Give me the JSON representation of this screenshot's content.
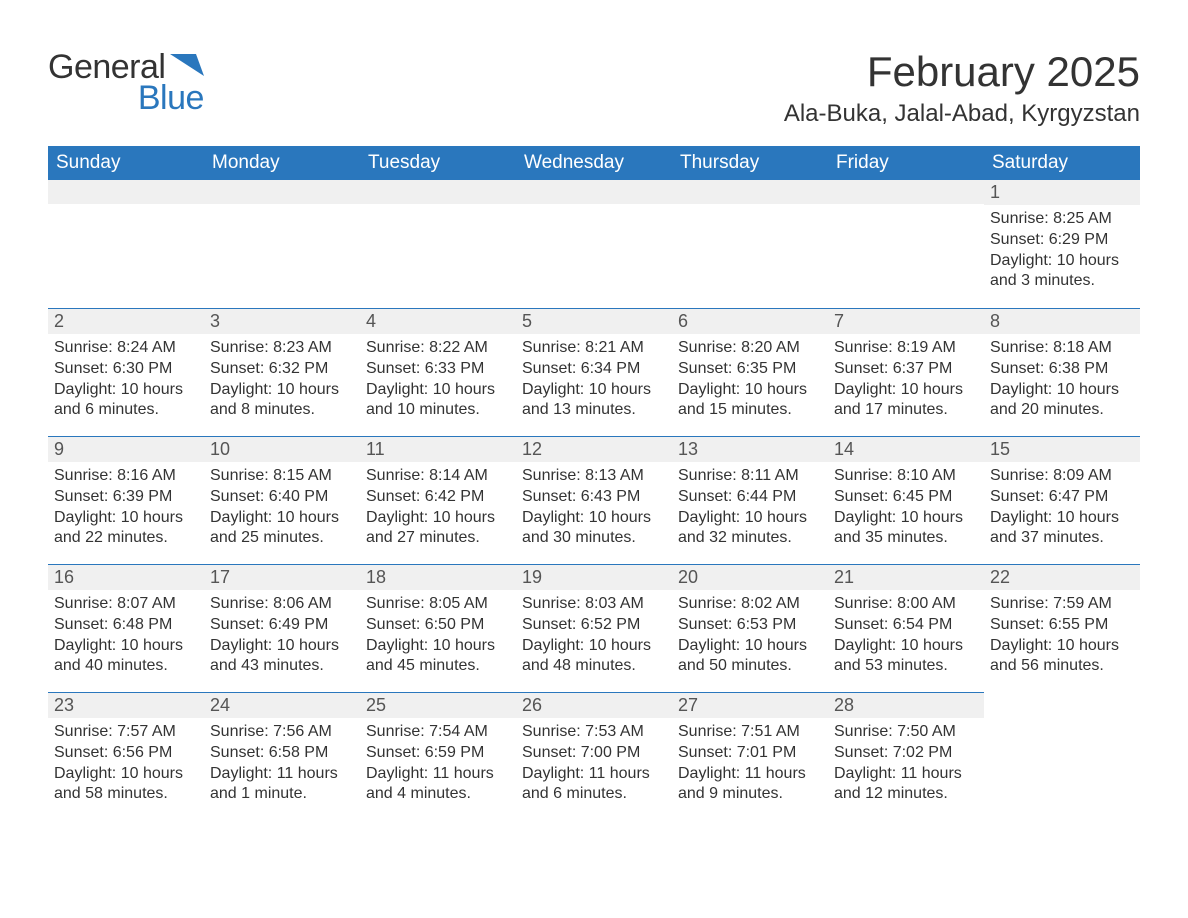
{
  "brand": {
    "word1": "General",
    "word2": "Blue"
  },
  "title": "February 2025",
  "location": "Ala-Buka, Jalal-Abad, Kyrgyzstan",
  "colors": {
    "header_bg": "#2a77bd",
    "header_text": "#ffffff",
    "daynum_bg": "#f0f0f0",
    "row_border": "#2a77bd",
    "body_text": "#333333",
    "background": "#ffffff"
  },
  "typography": {
    "title_fontsize": 42,
    "location_fontsize": 24,
    "header_fontsize": 19,
    "daynum_fontsize": 18,
    "cell_fontsize": 16
  },
  "weekdays": [
    "Sunday",
    "Monday",
    "Tuesday",
    "Wednesday",
    "Thursday",
    "Friday",
    "Saturday"
  ],
  "weeks": [
    [
      null,
      null,
      null,
      null,
      null,
      null,
      {
        "n": "1",
        "sunrise": "Sunrise: 8:25 AM",
        "sunset": "Sunset: 6:29 PM",
        "daylight": "Daylight: 10 hours and 3 minutes."
      }
    ],
    [
      {
        "n": "2",
        "sunrise": "Sunrise: 8:24 AM",
        "sunset": "Sunset: 6:30 PM",
        "daylight": "Daylight: 10 hours and 6 minutes."
      },
      {
        "n": "3",
        "sunrise": "Sunrise: 8:23 AM",
        "sunset": "Sunset: 6:32 PM",
        "daylight": "Daylight: 10 hours and 8 minutes."
      },
      {
        "n": "4",
        "sunrise": "Sunrise: 8:22 AM",
        "sunset": "Sunset: 6:33 PM",
        "daylight": "Daylight: 10 hours and 10 minutes."
      },
      {
        "n": "5",
        "sunrise": "Sunrise: 8:21 AM",
        "sunset": "Sunset: 6:34 PM",
        "daylight": "Daylight: 10 hours and 13 minutes."
      },
      {
        "n": "6",
        "sunrise": "Sunrise: 8:20 AM",
        "sunset": "Sunset: 6:35 PM",
        "daylight": "Daylight: 10 hours and 15 minutes."
      },
      {
        "n": "7",
        "sunrise": "Sunrise: 8:19 AM",
        "sunset": "Sunset: 6:37 PM",
        "daylight": "Daylight: 10 hours and 17 minutes."
      },
      {
        "n": "8",
        "sunrise": "Sunrise: 8:18 AM",
        "sunset": "Sunset: 6:38 PM",
        "daylight": "Daylight: 10 hours and 20 minutes."
      }
    ],
    [
      {
        "n": "9",
        "sunrise": "Sunrise: 8:16 AM",
        "sunset": "Sunset: 6:39 PM",
        "daylight": "Daylight: 10 hours and 22 minutes."
      },
      {
        "n": "10",
        "sunrise": "Sunrise: 8:15 AM",
        "sunset": "Sunset: 6:40 PM",
        "daylight": "Daylight: 10 hours and 25 minutes."
      },
      {
        "n": "11",
        "sunrise": "Sunrise: 8:14 AM",
        "sunset": "Sunset: 6:42 PM",
        "daylight": "Daylight: 10 hours and 27 minutes."
      },
      {
        "n": "12",
        "sunrise": "Sunrise: 8:13 AM",
        "sunset": "Sunset: 6:43 PM",
        "daylight": "Daylight: 10 hours and 30 minutes."
      },
      {
        "n": "13",
        "sunrise": "Sunrise: 8:11 AM",
        "sunset": "Sunset: 6:44 PM",
        "daylight": "Daylight: 10 hours and 32 minutes."
      },
      {
        "n": "14",
        "sunrise": "Sunrise: 8:10 AM",
        "sunset": "Sunset: 6:45 PM",
        "daylight": "Daylight: 10 hours and 35 minutes."
      },
      {
        "n": "15",
        "sunrise": "Sunrise: 8:09 AM",
        "sunset": "Sunset: 6:47 PM",
        "daylight": "Daylight: 10 hours and 37 minutes."
      }
    ],
    [
      {
        "n": "16",
        "sunrise": "Sunrise: 8:07 AM",
        "sunset": "Sunset: 6:48 PM",
        "daylight": "Daylight: 10 hours and 40 minutes."
      },
      {
        "n": "17",
        "sunrise": "Sunrise: 8:06 AM",
        "sunset": "Sunset: 6:49 PM",
        "daylight": "Daylight: 10 hours and 43 minutes."
      },
      {
        "n": "18",
        "sunrise": "Sunrise: 8:05 AM",
        "sunset": "Sunset: 6:50 PM",
        "daylight": "Daylight: 10 hours and 45 minutes."
      },
      {
        "n": "19",
        "sunrise": "Sunrise: 8:03 AM",
        "sunset": "Sunset: 6:52 PM",
        "daylight": "Daylight: 10 hours and 48 minutes."
      },
      {
        "n": "20",
        "sunrise": "Sunrise: 8:02 AM",
        "sunset": "Sunset: 6:53 PM",
        "daylight": "Daylight: 10 hours and 50 minutes."
      },
      {
        "n": "21",
        "sunrise": "Sunrise: 8:00 AM",
        "sunset": "Sunset: 6:54 PM",
        "daylight": "Daylight: 10 hours and 53 minutes."
      },
      {
        "n": "22",
        "sunrise": "Sunrise: 7:59 AM",
        "sunset": "Sunset: 6:55 PM",
        "daylight": "Daylight: 10 hours and 56 minutes."
      }
    ],
    [
      {
        "n": "23",
        "sunrise": "Sunrise: 7:57 AM",
        "sunset": "Sunset: 6:56 PM",
        "daylight": "Daylight: 10 hours and 58 minutes."
      },
      {
        "n": "24",
        "sunrise": "Sunrise: 7:56 AM",
        "sunset": "Sunset: 6:58 PM",
        "daylight": "Daylight: 11 hours and 1 minute."
      },
      {
        "n": "25",
        "sunrise": "Sunrise: 7:54 AM",
        "sunset": "Sunset: 6:59 PM",
        "daylight": "Daylight: 11 hours and 4 minutes."
      },
      {
        "n": "26",
        "sunrise": "Sunrise: 7:53 AM",
        "sunset": "Sunset: 7:00 PM",
        "daylight": "Daylight: 11 hours and 6 minutes."
      },
      {
        "n": "27",
        "sunrise": "Sunrise: 7:51 AM",
        "sunset": "Sunset: 7:01 PM",
        "daylight": "Daylight: 11 hours and 9 minutes."
      },
      {
        "n": "28",
        "sunrise": "Sunrise: 7:50 AM",
        "sunset": "Sunset: 7:02 PM",
        "daylight": "Daylight: 11 hours and 12 minutes."
      },
      null
    ]
  ]
}
